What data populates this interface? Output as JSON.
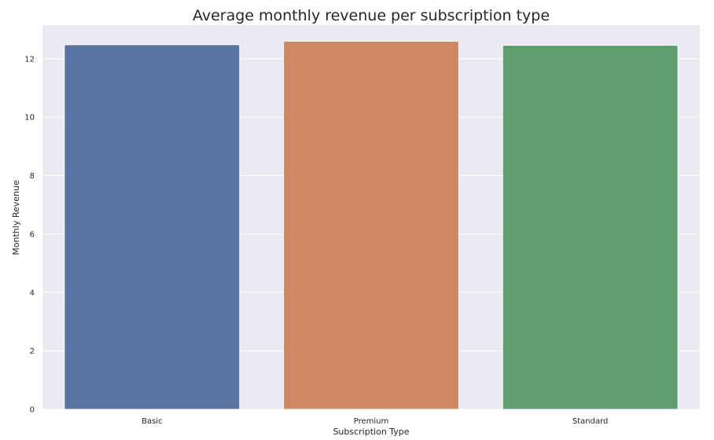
{
  "chart_data": {
    "type": "bar",
    "title": "Average monthly revenue per subscription type",
    "xlabel": "Subscription Type",
    "ylabel": "Monthly Revenue",
    "categories": [
      "Basic",
      "Premium",
      "Standard"
    ],
    "values": [
      12.48,
      12.6,
      12.46
    ],
    "colors": [
      "#5975a4",
      "#cc8963",
      "#5f9e6e"
    ],
    "ylim": [
      0,
      13.15
    ],
    "yticks": [
      0,
      2,
      4,
      6,
      8,
      10,
      12
    ],
    "grid": true,
    "background": "#eaeaf2",
    "legend": "none"
  }
}
